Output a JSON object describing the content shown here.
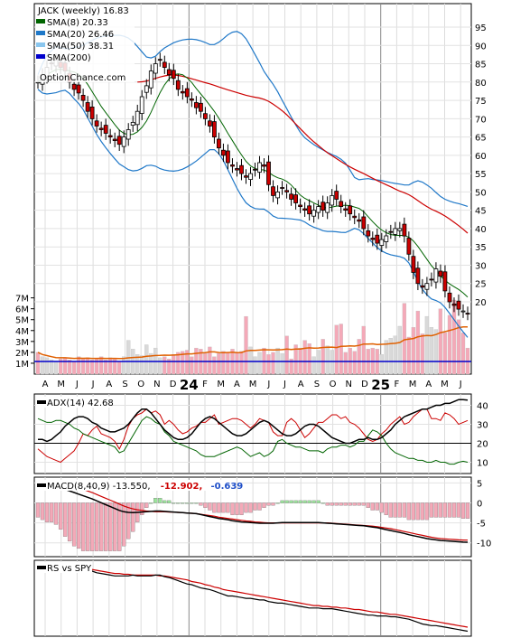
{
  "chart_data": [
    {
      "panel": "price",
      "type": "candlestick",
      "title": "JACK (weekly) 16.83",
      "watermark": "OptionChance.com",
      "legend": [
        {
          "label": "SMA(8) 20.33",
          "color": "#006400"
        },
        {
          "label": "SMA(20) 26.46",
          "color": "#1f78c8"
        },
        {
          "label": "SMA(50) 38.31",
          "color": "#8ac6ee"
        },
        {
          "label": "SMA(200)",
          "color": "#0000cc"
        }
      ],
      "y_ticks": [
        "95",
        "90",
        "85",
        "80",
        "75",
        "70",
        "65",
        "60",
        "55",
        "50",
        "45",
        "40",
        "35",
        "30",
        "25",
        "20"
      ],
      "ylim": [
        16,
        100
      ],
      "x_tick_labels": [
        "A",
        "M",
        "J",
        "J",
        "A",
        "S",
        "O",
        "N",
        "D",
        "24",
        "F",
        "M",
        "A",
        "M",
        "J",
        "J",
        "A",
        "S",
        "O",
        "N",
        "D",
        "25",
        "F",
        "M",
        "A",
        "M",
        "J"
      ],
      "close": [
        80,
        82,
        84,
        85,
        86,
        84,
        83,
        80,
        78,
        77,
        75,
        72,
        70,
        68,
        67,
        66,
        65,
        64,
        63,
        65,
        67,
        69,
        72,
        76,
        79,
        83,
        85,
        86,
        84,
        82,
        81,
        78,
        77,
        76,
        75,
        73,
        72,
        70,
        68,
        65,
        62,
        60,
        58,
        57,
        56,
        55,
        54,
        55,
        56,
        58,
        57,
        52,
        49,
        50,
        51,
        50,
        48,
        47,
        46,
        45,
        44,
        45,
        46,
        45,
        47,
        49,
        48,
        46,
        45,
        44,
        43,
        42,
        40,
        38,
        37,
        36,
        37,
        38,
        39,
        40,
        40,
        38,
        33,
        28,
        25,
        24,
        25,
        26,
        29,
        27,
        23,
        20,
        19,
        18,
        17.5,
        16.8
      ]
    },
    {
      "panel": "volume",
      "type": "bar",
      "y_ticks": [
        "7M",
        "6M",
        "5M",
        "4M",
        "3M",
        "2M",
        "1M"
      ],
      "ylim": [
        0,
        7.3
      ],
      "values": [
        2.0,
        1.6,
        1.5,
        1.3,
        1.2,
        1.4,
        1.5,
        1.3,
        1.2,
        1.6,
        1.4,
        1.5,
        1.3,
        1.4,
        1.6,
        1.3,
        1.5,
        1.4,
        1.2,
        1.6,
        3.1,
        2.3,
        1.8,
        1.7,
        2.7,
        1.9,
        2.4,
        1.5,
        1.6,
        1.4,
        1.8,
        2.0,
        2.1,
        2.2,
        1.6,
        2.4,
        2.3,
        1.9,
        2.5,
        1.6,
        1.9,
        2.1,
        2.0,
        2.3,
        2.0,
        2.1,
        5.3,
        2.5,
        1.6,
        2.0,
        2.4,
        1.8,
        2.0,
        2.4,
        1.9,
        3.5,
        1.4,
        2.7,
        2.4,
        3.1,
        2.8,
        1.6,
        2.2,
        3.2,
        2.6,
        2.2,
        4.5,
        4.6,
        2.0,
        2.4,
        2.1,
        3.2,
        4.4,
        2.3,
        2.4,
        2.3,
        1.8,
        3.1,
        3.3,
        3.5,
        4.4,
        6.5,
        3.4,
        4.3,
        5.8,
        3.7,
        5.3,
        4.3,
        4.1,
        6.0,
        3.8,
        5.4,
        6.8,
        5.0,
        3.8,
        2.4
      ],
      "color": "#f4a9b8"
    },
    {
      "panel": "adx",
      "type": "line",
      "label": "ADX(14) 42.68",
      "y_ticks": [
        "40",
        "30",
        "20",
        "10"
      ],
      "ylim": [
        5,
        45
      ],
      "series": [
        {
          "color": "#000000",
          "values": [
            22,
            22,
            21,
            22,
            24,
            26,
            29,
            31,
            33,
            34,
            34,
            33,
            31,
            30,
            28,
            27,
            26,
            26,
            27,
            28,
            30,
            33,
            36,
            38,
            38,
            36,
            33,
            30,
            27,
            25,
            23,
            22,
            22,
            23,
            25,
            28,
            31,
            33,
            34,
            33,
            31,
            29,
            27,
            25,
            24,
            24,
            25,
            27,
            29,
            31,
            32,
            31,
            29,
            27,
            25,
            24,
            24,
            25,
            27,
            29,
            30,
            30,
            29,
            27,
            25,
            23,
            22,
            21,
            20,
            20,
            21,
            22,
            22,
            23,
            22,
            22,
            23,
            25,
            27,
            30,
            32,
            34,
            35,
            36,
            37,
            38,
            38,
            39,
            40,
            40,
            41,
            41,
            42,
            43,
            43,
            42.7
          ]
        },
        {
          "color": "#cc0000",
          "values": [
            17,
            15,
            13,
            12,
            11,
            10,
            12,
            14,
            16,
            20,
            25,
            24,
            27,
            29,
            25,
            24,
            23,
            21,
            17,
            22,
            29,
            33,
            35,
            36,
            38,
            36,
            37,
            35,
            30,
            32,
            30,
            27,
            25,
            26,
            28,
            29,
            31,
            31,
            33,
            35,
            30,
            31,
            32,
            33,
            33,
            32,
            30,
            28,
            30,
            33,
            32,
            31,
            26,
            24,
            24,
            31,
            33,
            31,
            27,
            23,
            25,
            28,
            31,
            31,
            33,
            35,
            35,
            33,
            34,
            31,
            30,
            28,
            25,
            22,
            21,
            22,
            25,
            27,
            30,
            32,
            34,
            30,
            31,
            34,
            36,
            38,
            38,
            33,
            33,
            32,
            36,
            35,
            33,
            30,
            31,
            32
          ]
        },
        {
          "color": "#006400",
          "values": [
            33,
            32,
            31,
            31,
            32,
            32,
            31,
            30,
            28,
            27,
            25,
            24,
            23,
            22,
            21,
            20,
            19,
            18,
            15,
            16,
            20,
            24,
            28,
            32,
            34,
            33,
            31,
            30,
            26,
            24,
            21,
            20,
            19,
            18,
            17,
            16,
            14,
            13,
            13,
            13,
            14,
            15,
            16,
            17,
            18,
            17,
            15,
            13,
            14,
            15,
            13,
            14,
            16,
            21,
            22,
            20,
            19,
            18,
            18,
            17,
            16,
            16,
            16,
            15,
            17,
            18,
            18,
            19,
            19,
            18,
            19,
            21,
            21,
            24,
            27,
            26,
            24,
            20,
            17,
            15,
            14,
            13,
            12,
            12,
            11,
            11,
            10,
            10,
            11,
            10,
            10,
            9,
            9,
            10,
            10.5,
            10
          ]
        }
      ],
      "reference_line": 20
    },
    {
      "panel": "macd",
      "type": "line",
      "label": "MACD(8,40,9) -13.550,",
      "value_red": "-12.902,",
      "value_blue": "-0.639",
      "y_ticks": [
        "5",
        "0",
        "-5",
        "-10"
      ],
      "ylim": [
        -13,
        6
      ],
      "macd": [
        4.4,
        4.3,
        4.1,
        4.0,
        3.8,
        3.5,
        3.0,
        2.5,
        2.0,
        1.5,
        1.0,
        0.5,
        0.0,
        -0.6,
        -1.2,
        -1.8,
        -2.4,
        -3.0,
        -3.6,
        -4.0,
        -4.2,
        -4.3,
        -4.2,
        -4.1,
        -4.0,
        -3.9,
        -3.8,
        -3.8,
        -3.9,
        -4.0,
        -4.1,
        -4.2,
        -4.3,
        -4.4,
        -4.5,
        -4.6,
        -4.9,
        -5.2,
        -5.5,
        -5.8,
        -6.1,
        -6.3,
        -6.5,
        -6.8,
        -7.0,
        -7.2,
        -7.3,
        -7.4,
        -7.5,
        -7.6,
        -7.6,
        -7.6,
        -7.6,
        -7.5,
        -7.4,
        -7.4,
        -7.4,
        -7.4,
        -7.4,
        -7.4,
        -7.4,
        -7.4,
        -7.4,
        -7.5,
        -7.6,
        -7.7,
        -7.8,
        -7.9,
        -8.0,
        -8.1,
        -8.2,
        -8.3,
        -8.4,
        -8.6,
        -8.8,
        -9.0,
        -9.3,
        -9.6,
        -9.9,
        -10.2,
        -10.5,
        -10.8,
        -11.2,
        -11.5,
        -11.8,
        -12.1,
        -12.4,
        -12.6,
        -12.8,
        -13.0,
        -13.1,
        -13.2,
        -13.3,
        -13.4,
        -13.5,
        -13.55
      ],
      "signal": [
        5.0,
        5.0,
        4.9,
        4.8,
        4.7,
        4.6,
        4.4,
        4.1,
        3.8,
        3.4,
        3.0,
        2.5,
        2.0,
        1.4,
        0.8,
        0.2,
        -0.4,
        -1.0,
        -1.6,
        -2.2,
        -2.7,
        -3.1,
        -3.4,
        -3.6,
        -3.8,
        -3.9,
        -4.0,
        -4.0,
        -4.0,
        -4.1,
        -4.1,
        -4.2,
        -4.3,
        -4.4,
        -4.5,
        -4.6,
        -4.8,
        -5.0,
        -5.2,
        -5.4,
        -5.7,
        -5.9,
        -6.1,
        -6.3,
        -6.5,
        -6.7,
        -6.9,
        -7.0,
        -7.2,
        -7.3,
        -7.4,
        -7.5,
        -7.5,
        -7.5,
        -7.5,
        -7.5,
        -7.5,
        -7.5,
        -7.5,
        -7.5,
        -7.5,
        -7.5,
        -7.5,
        -7.5,
        -7.5,
        -7.6,
        -7.7,
        -7.8,
        -7.9,
        -8.0,
        -8.1,
        -8.2,
        -8.3,
        -8.4,
        -8.5,
        -8.7,
        -8.9,
        -9.1,
        -9.3,
        -9.6,
        -9.9,
        -10.2,
        -10.5,
        -10.8,
        -11.1,
        -11.4,
        -11.7,
        -12.0,
        -12.2,
        -12.4,
        -12.5,
        -12.6,
        -12.7,
        -12.8,
        -12.85,
        -12.9
      ]
    },
    {
      "panel": "relative_strength",
      "type": "line",
      "label": "RS vs SPY",
      "series": [
        {
          "color": "#000000",
          "values": [
            0.97,
            0.97,
            0.97,
            0.96,
            0.96,
            0.97,
            0.98,
            0.98,
            0.97,
            0.96,
            0.95,
            0.93,
            0.91,
            0.89,
            0.88,
            0.87,
            0.86,
            0.85,
            0.85,
            0.85,
            0.85,
            0.86,
            0.85,
            0.85,
            0.85,
            0.85,
            0.86,
            0.86,
            0.84,
            0.83,
            0.81,
            0.79,
            0.77,
            0.75,
            0.74,
            0.72,
            0.7,
            0.69,
            0.68,
            0.66,
            0.64,
            0.62,
            0.6,
            0.6,
            0.59,
            0.58,
            0.57,
            0.57,
            0.56,
            0.55,
            0.55,
            0.53,
            0.52,
            0.51,
            0.51,
            0.5,
            0.49,
            0.48,
            0.47,
            0.46,
            0.45,
            0.45,
            0.45,
            0.44,
            0.44,
            0.44,
            0.43,
            0.42,
            0.41,
            0.4,
            0.39,
            0.38,
            0.37,
            0.36,
            0.36,
            0.35,
            0.35,
            0.35,
            0.34,
            0.34,
            0.33,
            0.32,
            0.31,
            0.29,
            0.27,
            0.25,
            0.24,
            0.23,
            0.23,
            0.22,
            0.21,
            0.2,
            0.19,
            0.18,
            0.17,
            0.16
          ]
        },
        {
          "color": "#cc0000",
          "values": [
            0.98,
            0.98,
            0.98,
            0.98,
            0.98,
            0.97,
            0.97,
            0.97,
            0.97,
            0.96,
            0.95,
            0.94,
            0.93,
            0.92,
            0.91,
            0.9,
            0.89,
            0.88,
            0.88,
            0.87,
            0.87,
            0.86,
            0.86,
            0.86,
            0.86,
            0.86,
            0.86,
            0.85,
            0.85,
            0.84,
            0.83,
            0.82,
            0.81,
            0.8,
            0.78,
            0.77,
            0.76,
            0.74,
            0.73,
            0.71,
            0.7,
            0.68,
            0.67,
            0.66,
            0.65,
            0.64,
            0.63,
            0.62,
            0.61,
            0.6,
            0.59,
            0.58,
            0.57,
            0.56,
            0.55,
            0.54,
            0.53,
            0.52,
            0.51,
            0.5,
            0.49,
            0.48,
            0.48,
            0.47,
            0.47,
            0.46,
            0.46,
            0.45,
            0.45,
            0.44,
            0.43,
            0.43,
            0.42,
            0.41,
            0.4,
            0.4,
            0.39,
            0.38,
            0.37,
            0.37,
            0.36,
            0.35,
            0.34,
            0.33,
            0.32,
            0.31,
            0.3,
            0.29,
            0.28,
            0.27,
            0.26,
            0.25,
            0.24,
            0.23,
            0.22,
            0.21
          ]
        }
      ]
    }
  ]
}
